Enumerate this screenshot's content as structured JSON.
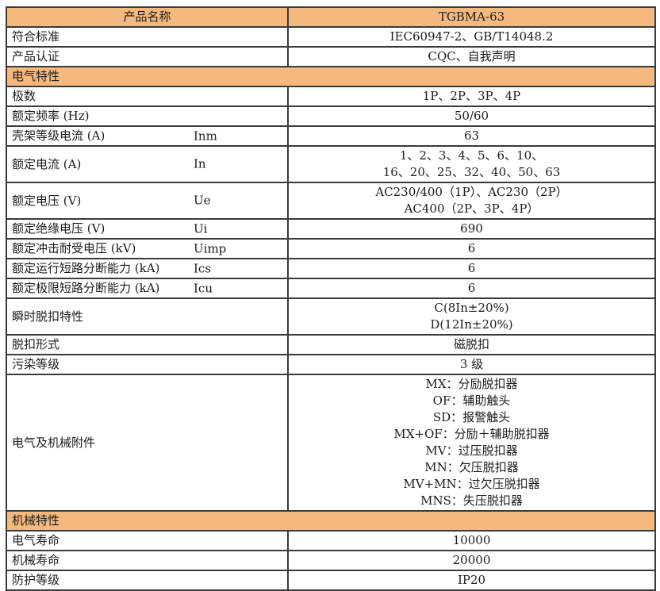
{
  "table": {
    "header": {
      "col1": "产品名称",
      "col2": "TGBMA-63"
    },
    "colors": {
      "accent_orange": "#F5B87D",
      "border": "#3A3A3A",
      "header_text": "#FFFFFF",
      "body_text": "#1C1C1C",
      "row_background": "#FFFFFF"
    },
    "rows": [
      {
        "type": "row",
        "label": "符合标准",
        "values": [
          "IEC60947-2、GB/T14048.2"
        ]
      },
      {
        "type": "row",
        "label": "产品认证",
        "values": [
          "CQC、自我声明"
        ]
      },
      {
        "type": "section",
        "label": "电气特性"
      },
      {
        "type": "row",
        "label": "极数",
        "values": [
          "1P、2P、3P、4P"
        ]
      },
      {
        "type": "row",
        "label": "额定频率 (Hz)",
        "values": [
          "50/60"
        ]
      },
      {
        "type": "row",
        "label": "壳架等级电流 (A)",
        "symbol": "Inm",
        "values": [
          "63"
        ]
      },
      {
        "type": "row",
        "label": "额定电流 (A)",
        "symbol": "In",
        "values": [
          "1、2、3、4、5、6、10、",
          "16、20、25、32、40、50、63"
        ]
      },
      {
        "type": "row",
        "label": "额定电压 (V)",
        "symbol": "Ue",
        "values": [
          "AC230/400（1P）、AC230（2P）",
          "AC400（2P、3P、4P）"
        ]
      },
      {
        "type": "row",
        "label": "额定绝缘电压 (V)",
        "symbol": "Ui",
        "values": [
          "690"
        ]
      },
      {
        "type": "row",
        "label": "额定冲击耐受电压 (kV)",
        "symbol": "Uimp",
        "values": [
          "6"
        ]
      },
      {
        "type": "row",
        "label": "额定运行短路分断能力 (kA)",
        "symbol": "Ics",
        "values": [
          "6"
        ]
      },
      {
        "type": "row",
        "label": "额定极限短路分断能力 (kA)",
        "symbol": "Icu",
        "values": [
          "6"
        ]
      },
      {
        "type": "row",
        "label": "瞬时脱扣特性",
        "values": [
          "C(8In±20%)",
          "D(12In±20%)"
        ]
      },
      {
        "type": "row",
        "label": "脱扣形式",
        "values": [
          "磁脱扣"
        ]
      },
      {
        "type": "row",
        "label": "污染等级",
        "values": [
          "3 级"
        ]
      },
      {
        "type": "row",
        "label": "电气及机械附件",
        "values": [
          "MX：分励脱扣器",
          "OF：辅助触头",
          "SD：报警触头",
          "MX+OF：分励＋辅助脱扣器",
          "MV：过压脱扣器",
          "MN：欠压脱扣器",
          "MV+MN：过欠压脱扣器",
          "MNS：失压脱扣器"
        ]
      },
      {
        "type": "section",
        "label": "机械特性"
      },
      {
        "type": "row",
        "label": "电气寿命",
        "values": [
          "10000"
        ]
      },
      {
        "type": "row",
        "label": "机械寿命",
        "values": [
          "20000"
        ]
      },
      {
        "type": "row",
        "label": "防护等级",
        "values": [
          "IP20"
        ]
      }
    ]
  }
}
